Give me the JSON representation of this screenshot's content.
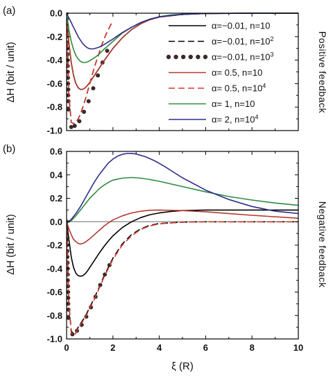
{
  "chart_data": [
    {
      "type": "line",
      "panel_label": "(a)",
      "side_label": "Positive feedback",
      "ylabel": "ΔH (bit / unit)",
      "xlabel": "",
      "xlim": [
        0,
        10
      ],
      "ylim": [
        -1.0,
        0.0
      ],
      "xticks": [
        0,
        2,
        4,
        6,
        8,
        10
      ],
      "yticks": [
        "-1.0",
        "-0.8",
        "-0.6",
        "-0.4",
        "-0.2",
        "0.0"
      ],
      "xtick_labels_shown": false,
      "legend_position": "top-right",
      "series": [
        {
          "name": "α=−0.01, n=10",
          "color": "#000000",
          "style": "solid",
          "x": [
            0.02,
            0.1,
            0.2,
            0.3,
            0.4,
            0.5,
            0.6,
            0.7,
            0.8,
            0.9,
            1.0,
            1.2,
            1.4,
            1.6,
            1.8,
            2.0,
            2.4,
            2.8,
            3.2,
            3.6,
            4.0,
            5,
            6,
            8,
            10
          ],
          "y": [
            -0.05,
            -0.25,
            -0.42,
            -0.53,
            -0.6,
            -0.635,
            -0.65,
            -0.648,
            -0.636,
            -0.615,
            -0.59,
            -0.53,
            -0.47,
            -0.41,
            -0.355,
            -0.3,
            -0.21,
            -0.14,
            -0.09,
            -0.055,
            -0.033,
            -0.01,
            -0.003,
            0,
            0
          ]
        },
        {
          "name": "α=−0.01, n=10²",
          "color": "#000000",
          "style": "dashed",
          "x": [
            0.02,
            0.05,
            0.1,
            0.2,
            0.3,
            0.4,
            0.5,
            0.6,
            0.7,
            0.8,
            0.9,
            1.0,
            1.1,
            1.2,
            1.3,
            1.4,
            1.5,
            1.6,
            1.7,
            1.8,
            1.9,
            2.0
          ],
          "y": [
            -0.08,
            -0.35,
            -0.7,
            -0.93,
            -0.94,
            -0.93,
            -0.9,
            -0.86,
            -0.8,
            -0.74,
            -0.67,
            -0.6,
            -0.53,
            -0.46,
            -0.4,
            -0.34,
            -0.28,
            -0.23,
            -0.18,
            -0.14,
            -0.1,
            -0.07
          ]
        },
        {
          "name": "α=−0.01, n=10³",
          "color": "#3a2a2a",
          "style": "dots",
          "x": [
            0,
            0,
            0,
            0.02,
            0.02,
            0.03,
            0.03,
            0.04,
            0.04,
            0.05,
            0.05,
            0.06,
            0.06,
            0.07,
            0.07,
            0.08,
            0.08,
            0.2,
            0.35,
            0.55,
            0.75,
            0.95,
            1.15,
            1.35,
            1.55,
            1.75
          ],
          "y": [
            0,
            -0.05,
            -0.1,
            -0.15,
            -0.2,
            -0.25,
            -0.3,
            -0.35,
            -0.4,
            -0.45,
            -0.5,
            -0.55,
            -0.6,
            -0.65,
            -0.7,
            -0.75,
            -0.82,
            -0.97,
            -0.96,
            -0.92,
            -0.84,
            -0.75,
            -0.64,
            -0.53,
            -0.42,
            -0.32
          ]
        },
        {
          "name": "α= 0.5, n=10",
          "color": "#b03a2e",
          "style": "solid",
          "x": [
            0.02,
            0.1,
            0.2,
            0.3,
            0.4,
            0.5,
            0.6,
            0.7,
            0.8,
            0.9,
            1.0,
            1.2,
            1.4,
            1.6,
            1.8,
            2.0,
            2.4,
            2.8,
            3.2,
            3.6,
            4.0,
            5,
            6,
            8,
            10
          ],
          "y": [
            -0.05,
            -0.25,
            -0.42,
            -0.53,
            -0.6,
            -0.635,
            -0.65,
            -0.648,
            -0.636,
            -0.615,
            -0.59,
            -0.53,
            -0.47,
            -0.41,
            -0.355,
            -0.3,
            -0.21,
            -0.14,
            -0.09,
            -0.055,
            -0.033,
            -0.01,
            -0.003,
            0,
            0
          ]
        },
        {
          "name": "α= 0.5, n=10⁴",
          "color": "#d23a2a",
          "style": "dashed",
          "x": [
            0.02,
            0.05,
            0.1,
            0.2,
            0.3,
            0.4,
            0.5,
            0.6,
            0.7,
            0.8,
            0.9,
            1.0,
            1.1,
            1.2,
            1.3,
            1.4,
            1.5,
            1.6,
            1.7,
            1.8,
            1.9,
            2.0
          ],
          "y": [
            -0.08,
            -0.35,
            -0.7,
            -0.93,
            -0.94,
            -0.93,
            -0.9,
            -0.86,
            -0.8,
            -0.74,
            -0.67,
            -0.6,
            -0.53,
            -0.46,
            -0.4,
            -0.34,
            -0.28,
            -0.23,
            -0.18,
            -0.14,
            -0.1,
            -0.07
          ]
        },
        {
          "name": "α= 1, n=10",
          "color": "#2e8b3e",
          "style": "solid",
          "x": [
            0.02,
            0.1,
            0.2,
            0.3,
            0.4,
            0.5,
            0.6,
            0.7,
            0.8,
            0.9,
            1.0,
            1.2,
            1.4,
            1.6,
            2.0,
            2.4,
            2.8,
            3.2,
            3.6,
            4.0,
            4.5,
            5,
            6,
            8,
            10
          ],
          "y": [
            -0.03,
            -0.14,
            -0.24,
            -0.31,
            -0.36,
            -0.39,
            -0.41,
            -0.42,
            -0.42,
            -0.415,
            -0.405,
            -0.38,
            -0.35,
            -0.31,
            -0.24,
            -0.17,
            -0.12,
            -0.08,
            -0.05,
            -0.03,
            -0.015,
            -0.008,
            -0.002,
            0,
            0
          ]
        },
        {
          "name": "α= 2, n=10⁴",
          "color": "#2e2e8c",
          "style": "solid",
          "x": [
            0.02,
            0.1,
            0.2,
            0.3,
            0.4,
            0.5,
            0.6,
            0.7,
            0.8,
            0.9,
            1.0,
            1.1,
            1.2,
            1.4,
            1.6,
            1.8,
            2.0,
            2.4,
            2.8,
            3.2,
            3.6,
            4.0,
            5,
            6,
            8,
            10
          ],
          "y": [
            -0.01,
            -0.04,
            -0.08,
            -0.12,
            -0.16,
            -0.2,
            -0.23,
            -0.26,
            -0.28,
            -0.295,
            -0.303,
            -0.305,
            -0.302,
            -0.29,
            -0.27,
            -0.245,
            -0.22,
            -0.165,
            -0.12,
            -0.08,
            -0.05,
            -0.03,
            -0.01,
            -0.003,
            0,
            0
          ]
        }
      ]
    },
    {
      "type": "line",
      "panel_label": "(b)",
      "side_label": "Negative feedback",
      "ylabel": "ΔH (bit / unit)",
      "xlabel": "ξ (R)",
      "xlim": [
        0,
        10
      ],
      "ylim": [
        -1.0,
        0.6
      ],
      "xticks": [
        "0",
        "2",
        "4",
        "6",
        "8",
        "10"
      ],
      "yticks": [
        "-1.0",
        "-0.8",
        "-0.6",
        "-0.4",
        "-0.2",
        "0.0",
        "0.2",
        "0.4",
        "0.6"
      ],
      "xtick_labels_shown": true,
      "reference_line": {
        "y": 0,
        "color": "#9a9a9a"
      },
      "series": [
        {
          "name": "α=−0.01, n=10",
          "color": "#000000",
          "style": "solid",
          "x": [
            0.02,
            0.1,
            0.2,
            0.3,
            0.4,
            0.5,
            0.6,
            0.7,
            0.8,
            0.9,
            1.0,
            1.2,
            1.4,
            1.6,
            1.8,
            2.0,
            2.4,
            2.8,
            3.2,
            3.6,
            4.0,
            4.5,
            5,
            6,
            7,
            8,
            10
          ],
          "y": [
            -0.02,
            -0.15,
            -0.3,
            -0.39,
            -0.44,
            -0.46,
            -0.465,
            -0.46,
            -0.445,
            -0.42,
            -0.39,
            -0.33,
            -0.27,
            -0.215,
            -0.165,
            -0.12,
            -0.05,
            0.0,
            0.035,
            0.06,
            0.075,
            0.088,
            0.095,
            0.1,
            0.1,
            0.1,
            0.1
          ]
        },
        {
          "name": "α=−0.01, n=10²",
          "color": "#000000",
          "style": "dashed",
          "x": [
            0.02,
            0.05,
            0.1,
            0.2,
            0.3,
            0.4,
            0.5,
            0.6,
            0.7,
            0.8,
            1.0,
            1.2,
            1.4,
            1.6,
            1.8,
            2.0,
            2.4,
            2.8,
            3.2,
            3.6,
            4.0,
            5,
            6,
            8,
            10
          ],
          "y": [
            -0.08,
            -0.35,
            -0.7,
            -0.93,
            -0.96,
            -0.94,
            -0.9,
            -0.87,
            -0.84,
            -0.81,
            -0.73,
            -0.65,
            -0.56,
            -0.47,
            -0.39,
            -0.31,
            -0.19,
            -0.11,
            -0.06,
            -0.03,
            -0.015,
            -0.003,
            0,
            0,
            0
          ]
        },
        {
          "name": "α=−0.01, n=10³",
          "color": "#3a2a2a",
          "style": "dots",
          "x": [
            0,
            0,
            0,
            0.02,
            0.02,
            0.03,
            0.03,
            0.04,
            0.04,
            0.05,
            0.05,
            0.06,
            0.06,
            0.07,
            0.07,
            0.08,
            0.08,
            0.25,
            0.45,
            0.65,
            0.85,
            1.05,
            1.25,
            1.45,
            1.65,
            1.85
          ],
          "y": [
            0,
            -0.05,
            -0.1,
            -0.15,
            -0.2,
            -0.25,
            -0.3,
            -0.35,
            -0.4,
            -0.45,
            -0.5,
            -0.55,
            -0.6,
            -0.65,
            -0.7,
            -0.75,
            -0.82,
            -0.96,
            -0.93,
            -0.88,
            -0.81,
            -0.73,
            -0.64,
            -0.54,
            -0.45,
            -0.37
          ]
        },
        {
          "name": "α= 0.5, n=10",
          "color": "#b03a2e",
          "style": "solid",
          "x": [
            0.02,
            0.1,
            0.2,
            0.3,
            0.4,
            0.5,
            0.6,
            0.7,
            0.8,
            0.9,
            1.0,
            1.2,
            1.4,
            1.6,
            1.8,
            2.0,
            2.4,
            2.8,
            3.2,
            3.6,
            4.0,
            5,
            6,
            7,
            8,
            10
          ],
          "y": [
            -0.01,
            -0.06,
            -0.11,
            -0.15,
            -0.17,
            -0.185,
            -0.19,
            -0.185,
            -0.175,
            -0.16,
            -0.145,
            -0.11,
            -0.075,
            -0.04,
            -0.01,
            0.015,
            0.05,
            0.075,
            0.09,
            0.098,
            0.1,
            0.095,
            0.085,
            0.07,
            0.055,
            0.03
          ]
        },
        {
          "name": "α= 0.5, n=10⁴",
          "color": "#d23a2a",
          "style": "dashed",
          "x": [
            0.02,
            0.05,
            0.1,
            0.2,
            0.3,
            0.4,
            0.5,
            0.6,
            0.7,
            0.8,
            1.0,
            1.2,
            1.4,
            1.6,
            1.8,
            2.0,
            2.4,
            2.8,
            3.2,
            3.6,
            4.0,
            5,
            6,
            8,
            10
          ],
          "y": [
            -0.08,
            -0.35,
            -0.7,
            -0.95,
            -0.97,
            -0.95,
            -0.91,
            -0.88,
            -0.85,
            -0.82,
            -0.74,
            -0.66,
            -0.57,
            -0.48,
            -0.4,
            -0.32,
            -0.2,
            -0.12,
            -0.065,
            -0.035,
            -0.018,
            -0.004,
            0,
            0,
            0
          ]
        },
        {
          "name": "α= 1, n=10",
          "color": "#2e8b3e",
          "style": "solid",
          "x": [
            0,
            0.1,
            0.2,
            0.4,
            0.6,
            0.8,
            1.0,
            1.2,
            1.4,
            1.6,
            1.8,
            2.0,
            2.4,
            2.8,
            3.2,
            3.6,
            4.0,
            5,
            6,
            7,
            8,
            9,
            10
          ],
          "y": [
            0,
            0.0,
            0.01,
            0.05,
            0.1,
            0.15,
            0.2,
            0.24,
            0.28,
            0.31,
            0.335,
            0.355,
            0.372,
            0.378,
            0.372,
            0.36,
            0.345,
            0.3,
            0.255,
            0.215,
            0.185,
            0.16,
            0.14
          ]
        },
        {
          "name": "α= 2, n=10⁴",
          "color": "#2e2e8c",
          "style": "solid",
          "x": [
            0,
            0.1,
            0.2,
            0.4,
            0.6,
            0.8,
            1.0,
            1.2,
            1.4,
            1.6,
            1.8,
            2.0,
            2.2,
            2.4,
            2.6,
            2.8,
            3.0,
            3.4,
            3.8,
            4.2,
            4.6,
            5,
            6,
            7,
            8,
            9,
            10
          ],
          "y": [
            0,
            0.005,
            0.02,
            0.07,
            0.13,
            0.2,
            0.27,
            0.34,
            0.4,
            0.45,
            0.5,
            0.535,
            0.56,
            0.575,
            0.582,
            0.583,
            0.578,
            0.555,
            0.52,
            0.475,
            0.425,
            0.375,
            0.27,
            0.19,
            0.13,
            0.09,
            0.07
          ]
        }
      ]
    }
  ]
}
